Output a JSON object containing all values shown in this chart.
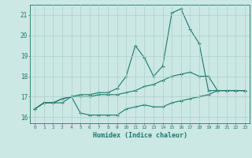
{
  "xlabel": "Humidex (Indice chaleur)",
  "background_color": "#cce8e4",
  "grid_color": "#aacfca",
  "line_color": "#1a7a6e",
  "xlim": [
    -0.5,
    23.5
  ],
  "ylim": [
    15.7,
    21.5
  ],
  "yticks": [
    16,
    17,
    18,
    19,
    20,
    21
  ],
  "xticks": [
    0,
    1,
    2,
    3,
    4,
    5,
    6,
    7,
    8,
    9,
    10,
    11,
    12,
    13,
    14,
    15,
    16,
    17,
    18,
    19,
    20,
    21,
    22,
    23
  ],
  "line1_x": [
    0,
    1,
    2,
    3,
    4,
    5,
    6,
    7,
    8,
    9,
    10,
    11,
    12,
    13,
    14,
    15,
    16,
    17,
    18,
    19,
    20,
    21,
    22,
    23
  ],
  "line1_y": [
    16.4,
    16.7,
    16.7,
    16.7,
    17.0,
    16.2,
    16.1,
    16.1,
    16.1,
    16.1,
    16.4,
    16.5,
    16.6,
    16.5,
    16.5,
    16.7,
    16.8,
    16.9,
    17.0,
    17.1,
    17.3,
    17.3,
    17.3,
    17.3
  ],
  "line2_x": [
    0,
    1,
    2,
    3,
    4,
    5,
    6,
    7,
    8,
    9,
    10,
    11,
    12,
    13,
    14,
    15,
    16,
    17,
    18,
    19,
    20,
    21,
    22,
    23
  ],
  "line2_y": [
    16.4,
    16.7,
    16.7,
    16.9,
    17.0,
    17.0,
    17.0,
    17.1,
    17.1,
    17.1,
    17.2,
    17.3,
    17.5,
    17.6,
    17.8,
    18.0,
    18.1,
    18.2,
    18.0,
    18.0,
    17.3,
    17.3,
    17.3,
    17.3
  ],
  "line3_x": [
    0,
    1,
    2,
    3,
    4,
    5,
    6,
    7,
    8,
    9,
    10,
    11,
    12,
    13,
    14,
    15,
    16,
    17,
    18,
    19,
    20,
    21,
    22,
    23
  ],
  "line3_y": [
    16.4,
    16.7,
    16.7,
    16.9,
    17.0,
    17.1,
    17.1,
    17.2,
    17.2,
    17.4,
    18.0,
    19.5,
    18.9,
    18.0,
    18.5,
    21.1,
    21.3,
    20.3,
    19.6,
    17.3,
    17.3,
    17.3,
    17.3,
    17.3
  ]
}
